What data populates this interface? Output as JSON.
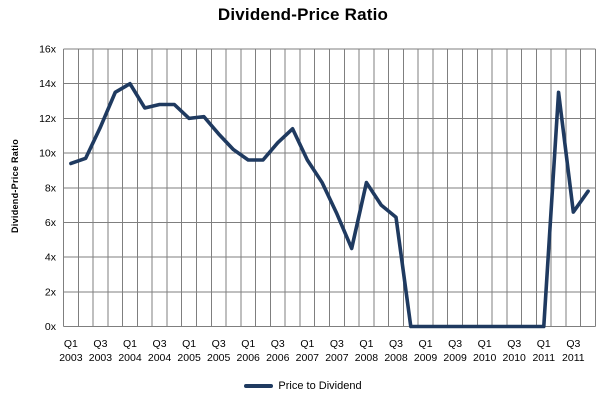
{
  "title": "Dividend-Price Ratio",
  "y_axis": {
    "title": "Dividend-Price  Ratio",
    "tick_labels": [
      "0x",
      "2x",
      "4x",
      "6x",
      "8x",
      "10x",
      "12x",
      "14x",
      "16x"
    ]
  },
  "legend": {
    "label": "Price to Dividend"
  },
  "colors": {
    "line": "#1F3A60",
    "grid": "#7F7F7F",
    "text": "#000000",
    "background": "#FFFFFF"
  },
  "chart_data": {
    "type": "line",
    "title": "Dividend-Price Ratio",
    "xlabel": "",
    "ylabel": "Dividend-Price  Ratio",
    "ylim": [
      0,
      16
    ],
    "ytick_interval": 2,
    "ytick_suffix": "x",
    "xtick_every": 2,
    "grid": true,
    "legend_position": "bottom",
    "x": [
      "Q1 2003",
      "Q2 2003",
      "Q3 2003",
      "Q4 2003",
      "Q1 2004",
      "Q2 2004",
      "Q3 2004",
      "Q4 2004",
      "Q1 2005",
      "Q2 2005",
      "Q3 2005",
      "Q4 2005",
      "Q1 2006",
      "Q2 2006",
      "Q3 2006",
      "Q4 2006",
      "Q1 2007",
      "Q2 2007",
      "Q3 2007",
      "Q4 2007",
      "Q1 2008",
      "Q2 2008",
      "Q3 2008",
      "Q4 2008",
      "Q1 2009",
      "Q2 2009",
      "Q3 2009",
      "Q4 2009",
      "Q1 2010",
      "Q2 2010",
      "Q3 2010",
      "Q4 2010",
      "Q1 2011",
      "Q2 2011",
      "Q3 2011",
      "Q4 2011"
    ],
    "series": [
      {
        "name": "Price to Dividend",
        "values": [
          9.4,
          9.7,
          11.5,
          13.5,
          14.0,
          12.6,
          12.8,
          12.8,
          12.0,
          12.1,
          11.1,
          10.2,
          9.6,
          9.6,
          10.6,
          11.4,
          9.6,
          8.3,
          6.5,
          4.5,
          8.3,
          7.0,
          6.3,
          0,
          0,
          0,
          0,
          0,
          0,
          0,
          0,
          0,
          0,
          13.5,
          6.6,
          7.8
        ]
      }
    ]
  }
}
